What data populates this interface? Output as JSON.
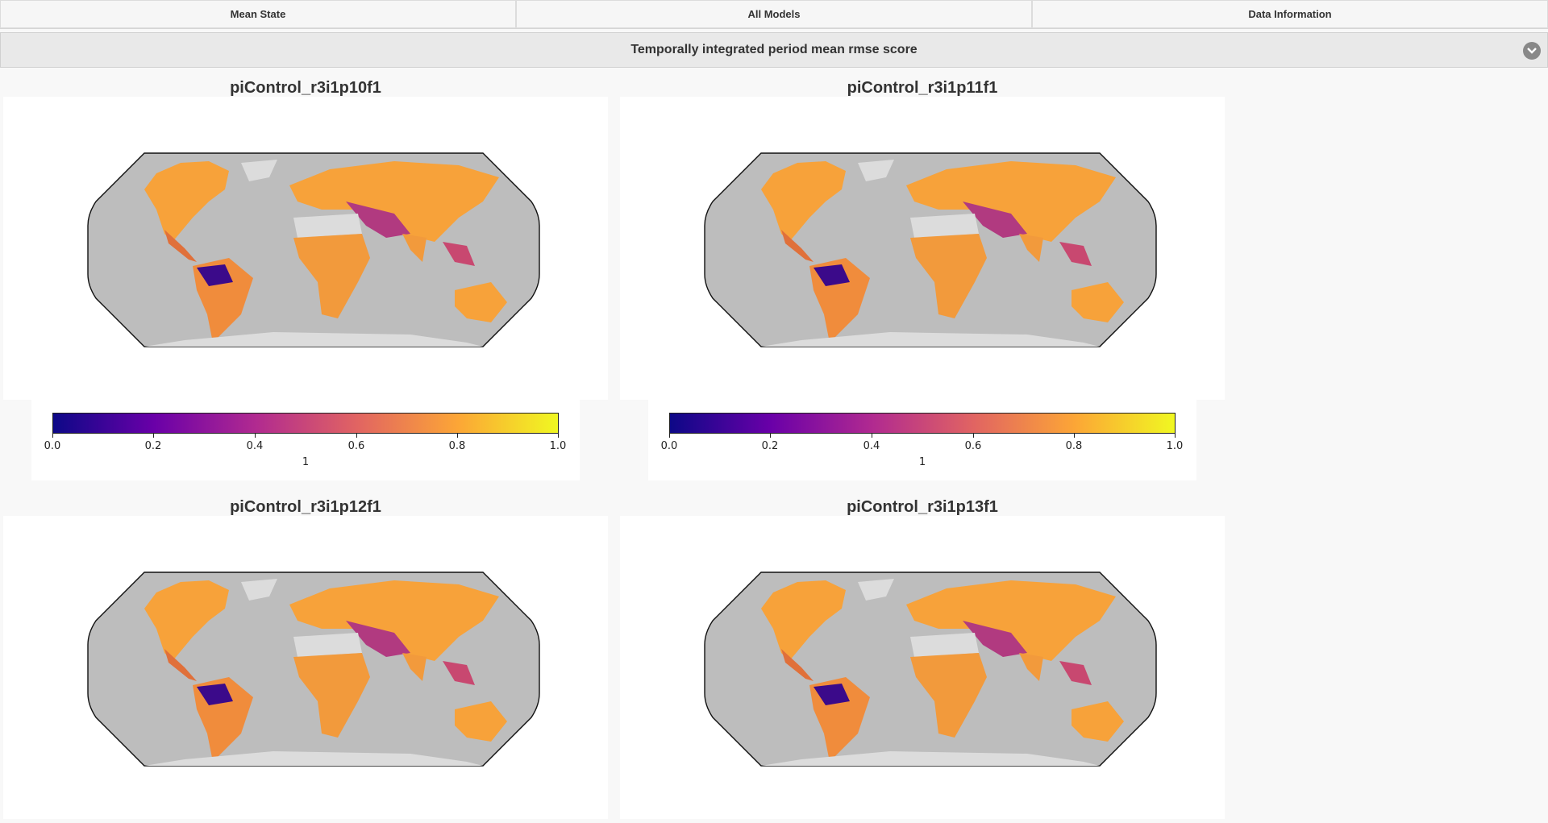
{
  "tabs": [
    {
      "label": "Mean State"
    },
    {
      "label": "All Models"
    },
    {
      "label": "Data Information"
    }
  ],
  "section": {
    "title": "Temporally integrated period mean rmse score",
    "toggle_icon": "chevron-down-icon"
  },
  "panels": [
    {
      "title": "piControl_r3i1p10f1"
    },
    {
      "title": "piControl_r3i1p11f1"
    },
    {
      "title": "piControl_r3i1p12f1"
    },
    {
      "title": "piControl_r3i1p13f1"
    }
  ],
  "colorbar": {
    "ticks": [
      "0.0",
      "0.2",
      "0.4",
      "0.6",
      "0.8",
      "1.0"
    ],
    "unit": "1",
    "colormap": [
      "#0d0887",
      "#6a00a8",
      "#b12a90",
      "#e16462",
      "#fca636",
      "#f0f921"
    ]
  },
  "colors": {
    "ocean": "#bdbdbd",
    "no_data": "#dcdcdc",
    "land": "#f6a03a",
    "background": "#f8f8f8"
  }
}
